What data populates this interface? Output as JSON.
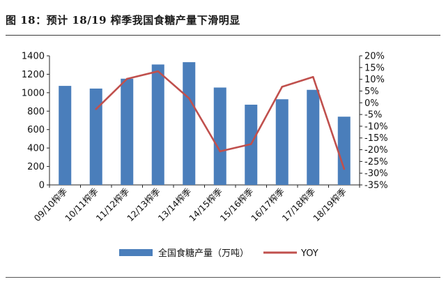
{
  "title": "图 18：预计 18/19 榨季我国食糖产量下滑明显",
  "chart_data": {
    "type": "bar",
    "categories": [
      "09/10榨季",
      "10/11榨季",
      "11/12榨季",
      "12/13榨季",
      "13/14榨季",
      "14/15榨季",
      "15/16榨季",
      "16/17榨季",
      "17/18榨季",
      "18/19榨季"
    ],
    "series": [
      {
        "name": "全国食糖产量（万吨）",
        "type": "bar",
        "axis": "left",
        "color": "#4a7ebb",
        "values": [
          1074,
          1045,
          1152,
          1306,
          1331,
          1056,
          870,
          929,
          1031,
          740
        ]
      },
      {
        "name": "YOY",
        "type": "line",
        "axis": "right",
        "color": "#c0504d",
        "values": [
          null,
          -2.7,
          10.2,
          13.4,
          1.9,
          -20.7,
          -17.6,
          6.8,
          11.0,
          -28.2
        ]
      }
    ],
    "y_left": {
      "ylim": [
        0,
        1400
      ],
      "ticks": [
        0,
        200,
        400,
        600,
        800,
        1000,
        1200,
        1400
      ]
    },
    "y_right": {
      "ylim": [
        -35,
        20
      ],
      "ticks": [
        20,
        15,
        10,
        5,
        0,
        -5,
        -10,
        -15,
        -20,
        -25,
        -30,
        -35
      ],
      "unit": "%"
    },
    "legend": {
      "placement": "bottom"
    },
    "grid": false
  }
}
